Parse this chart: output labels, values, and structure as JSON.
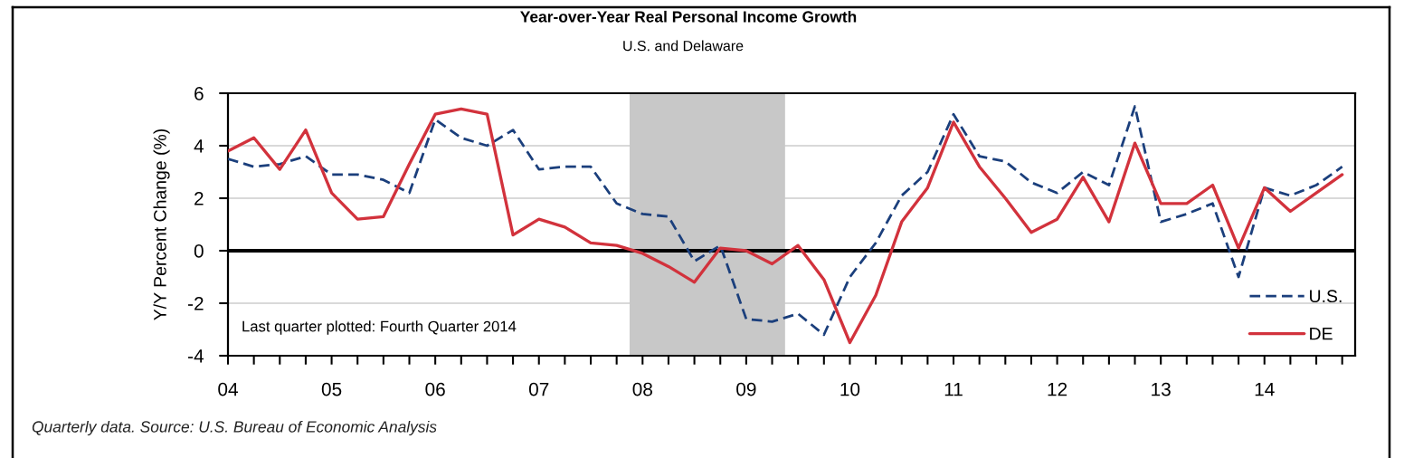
{
  "chart_data": {
    "type": "line",
    "title": "Year-over-Year Real Personal Income Growth",
    "subtitle": "U.S. and Delaware",
    "ylabel": "Y/Y Percent Change (%)",
    "annotations": [
      "Last quarter plotted: Fourth Quarter 2014",
      "Quarterly data. Source: U.S. Bureau of Economic Analysis"
    ],
    "x": [
      2004,
      2004.25,
      2004.5,
      2004.75,
      2005,
      2005.25,
      2005.5,
      2005.75,
      2006,
      2006.25,
      2006.5,
      2006.75,
      2007,
      2007.25,
      2007.5,
      2007.75,
      2008,
      2008.25,
      2008.5,
      2008.75,
      2009,
      2009.25,
      2009.5,
      2009.75,
      2010,
      2010.25,
      2010.5,
      2010.75,
      2011,
      2011.25,
      2011.5,
      2011.75,
      2012,
      2012.25,
      2012.5,
      2012.75,
      2013,
      2013.25,
      2013.5,
      2013.75,
      2014,
      2014.25,
      2014.5,
      2014.75
    ],
    "series": [
      {
        "name": "U.S.",
        "color": "#1b3f7c",
        "line_style": "dashed",
        "values": [
          3.5,
          3.2,
          3.3,
          3.6,
          2.9,
          2.9,
          2.7,
          2.2,
          5.0,
          4.3,
          4.0,
          4.6,
          3.1,
          3.2,
          3.2,
          1.8,
          1.4,
          1.3,
          -0.4,
          0.2,
          -2.6,
          -2.7,
          -2.4,
          -3.2,
          -1.0,
          0.3,
          2.1,
          3.0,
          5.2,
          3.6,
          3.4,
          2.6,
          2.2,
          3.0,
          2.5,
          5.5,
          1.1,
          1.4,
          1.8,
          -1.0,
          2.4,
          2.1,
          2.5,
          3.2
        ]
      },
      {
        "name": "DE",
        "color": "#d2323c",
        "line_style": "solid",
        "values": [
          3.8,
          4.3,
          3.1,
          4.6,
          2.2,
          1.2,
          1.3,
          3.3,
          5.2,
          5.4,
          5.2,
          0.6,
          1.2,
          0.9,
          0.3,
          0.2,
          -0.1,
          -0.6,
          -1.2,
          0.1,
          0.0,
          -0.5,
          0.2,
          -1.1,
          -3.5,
          -1.7,
          1.1,
          2.4,
          4.9,
          3.2,
          2.0,
          0.7,
          1.2,
          2.8,
          1.1,
          4.1,
          1.8,
          1.8,
          2.5,
          0.1,
          2.4,
          1.5,
          2.2,
          2.9
        ]
      }
    ],
    "xlim": [
      2004,
      2014.875
    ],
    "xticks": [
      {
        "value": 2004,
        "label": "04"
      },
      {
        "value": 2004.25,
        "label": null
      },
      {
        "value": 2004.5,
        "label": null
      },
      {
        "value": 2004.75,
        "label": null
      },
      {
        "value": 2005,
        "label": "05"
      },
      {
        "value": 2005.25,
        "label": null
      },
      {
        "value": 2005.5,
        "label": null
      },
      {
        "value": 2005.75,
        "label": null
      },
      {
        "value": 2006,
        "label": "06"
      },
      {
        "value": 2006.25,
        "label": null
      },
      {
        "value": 2006.5,
        "label": null
      },
      {
        "value": 2006.75,
        "label": null
      },
      {
        "value": 2007,
        "label": "07"
      },
      {
        "value": 2007.25,
        "label": null
      },
      {
        "value": 2007.5,
        "label": null
      },
      {
        "value": 2007.75,
        "label": null
      },
      {
        "value": 2008,
        "label": "08"
      },
      {
        "value": 2008.25,
        "label": null
      },
      {
        "value": 2008.5,
        "label": null
      },
      {
        "value": 2008.75,
        "label": null
      },
      {
        "value": 2009,
        "label": "09"
      },
      {
        "value": 2009.25,
        "label": null
      },
      {
        "value": 2009.5,
        "label": null
      },
      {
        "value": 2009.75,
        "label": null
      },
      {
        "value": 2010,
        "label": "10"
      },
      {
        "value": 2010.25,
        "label": null
      },
      {
        "value": 2010.5,
        "label": null
      },
      {
        "value": 2010.75,
        "label": null
      },
      {
        "value": 2011,
        "label": "11"
      },
      {
        "value": 2011.25,
        "label": null
      },
      {
        "value": 2011.5,
        "label": null
      },
      {
        "value": 2011.75,
        "label": null
      },
      {
        "value": 2012,
        "label": "12"
      },
      {
        "value": 2012.25,
        "label": null
      },
      {
        "value": 2012.5,
        "label": null
      },
      {
        "value": 2012.75,
        "label": null
      },
      {
        "value": 2013,
        "label": "13"
      },
      {
        "value": 2013.25,
        "label": null
      },
      {
        "value": 2013.5,
        "label": null
      },
      {
        "value": 2013.75,
        "label": null
      },
      {
        "value": 2014,
        "label": "14"
      },
      {
        "value": 2014.25,
        "label": null
      },
      {
        "value": 2014.5,
        "label": null
      },
      {
        "value": 2014.75,
        "label": null
      }
    ],
    "ylim": [
      -4,
      6
    ],
    "yticks": [
      -4,
      -2,
      0,
      2,
      4,
      6
    ],
    "ref_lines": [
      {
        "axis": "y",
        "value": 0,
        "color": "#000000"
      }
    ],
    "bands": [
      {
        "axis": "x",
        "from": 2007.875,
        "to": 2009.375,
        "color": "#c8c8c8"
      }
    ],
    "grid": "y",
    "legend": "bottom right"
  }
}
